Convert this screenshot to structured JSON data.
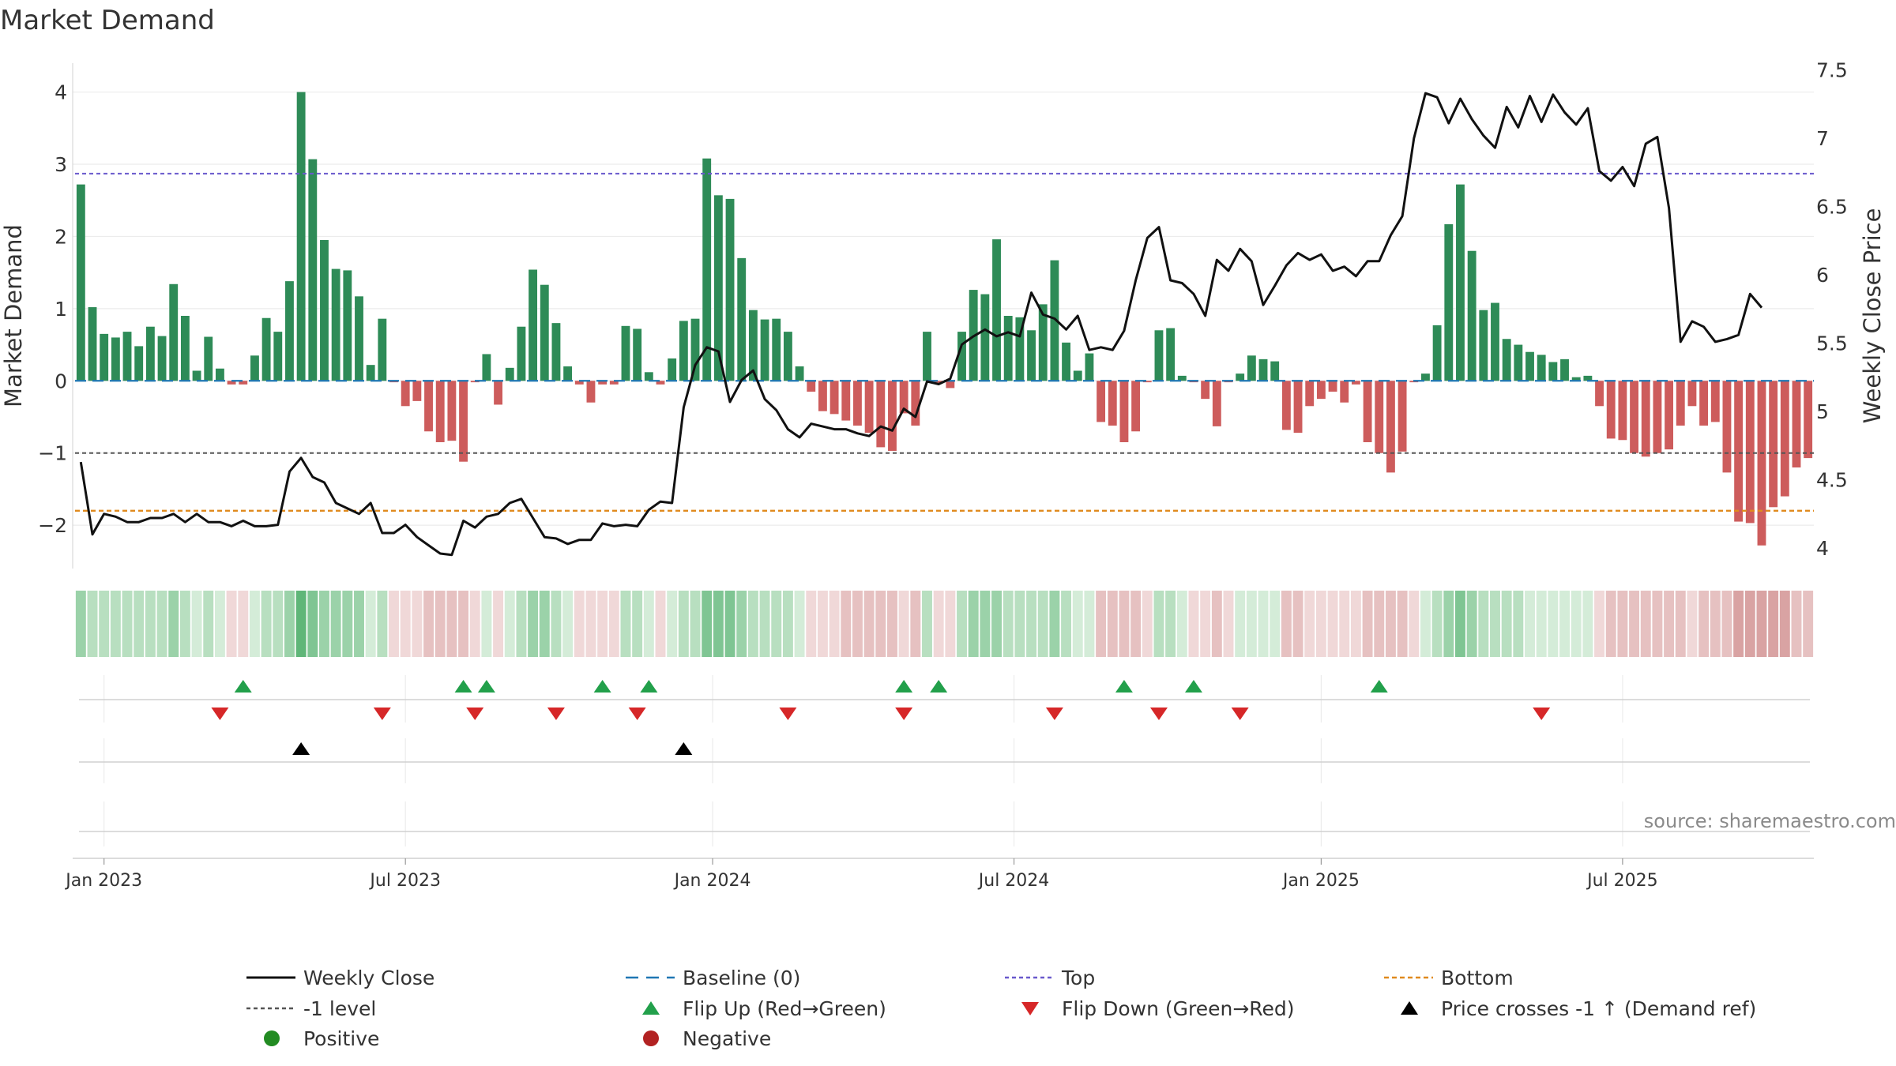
{
  "chart_data": {
    "type": "bar",
    "title": "Market Demand",
    "ylabel_left": "Market Demand",
    "ylabel_right": "Weekly Close Price",
    "ylim_left": [
      -2.6,
      4.4
    ],
    "ylim_right": [
      3.85,
      7.55
    ],
    "left_ticks": [
      {
        "v": 4,
        "t": "4"
      },
      {
        "v": 3,
        "t": "3"
      },
      {
        "v": 2,
        "t": "2"
      },
      {
        "v": 1,
        "t": "1"
      },
      {
        "v": 0,
        "t": "0"
      },
      {
        "v": -1,
        "t": "−1"
      },
      {
        "v": -2,
        "t": "−2"
      }
    ],
    "right_ticks": [
      {
        "v": 7.5,
        "t": "7.5"
      },
      {
        "v": 7,
        "t": "7"
      },
      {
        "v": 6.5,
        "t": "6.5"
      },
      {
        "v": 6,
        "t": "6"
      },
      {
        "v": 5.5,
        "t": "5.5"
      },
      {
        "v": 5,
        "t": "5"
      },
      {
        "v": 4.5,
        "t": "4.5"
      },
      {
        "v": 4,
        "t": "4"
      }
    ],
    "x_ticks": [
      {
        "i": 2,
        "label": "Jan 2023"
      },
      {
        "i": 28,
        "label": "Jul 2023"
      },
      {
        "i": 54.5,
        "label": "Jan 2024"
      },
      {
        "i": 80.5,
        "label": "Jul 2024"
      },
      {
        "i": 107,
        "label": "Jan 2025"
      },
      {
        "i": 133,
        "label": "Jul 2025"
      }
    ],
    "top_level": 2.87,
    "minus1_level": -1,
    "bottom_level": -1.8,
    "demand": [
      2.72,
      1.02,
      0.65,
      0.6,
      0.68,
      0.48,
      0.75,
      0.62,
      1.34,
      0.9,
      0.14,
      0.61,
      0.17,
      -0.05,
      -0.05,
      0.35,
      0.87,
      0.68,
      1.38,
      4.0,
      3.07,
      1.95,
      1.55,
      1.53,
      1.17,
      0.22,
      0.86,
      -0.02,
      -0.35,
      -0.28,
      -0.7,
      -0.85,
      -0.83,
      -1.12,
      -0.02,
      0.37,
      -0.33,
      0.18,
      0.75,
      1.54,
      1.33,
      0.8,
      0.2,
      -0.05,
      -0.3,
      -0.05,
      -0.05,
      0.76,
      0.72,
      0.12,
      -0.05,
      0.31,
      0.83,
      0.86,
      3.08,
      2.57,
      2.52,
      1.7,
      0.98,
      0.85,
      0.86,
      0.68,
      0.2,
      -0.15,
      -0.42,
      -0.46,
      -0.55,
      -0.62,
      -0.72,
      -0.92,
      -0.97,
      -0.45,
      -0.62,
      0.68,
      -0.03,
      -0.1,
      0.68,
      1.26,
      1.2,
      1.96,
      0.9,
      0.88,
      0.7,
      1.06,
      1.67,
      0.53,
      0.14,
      0.38,
      -0.57,
      -0.62,
      -0.85,
      -0.7,
      -0.02,
      0.7,
      0.73,
      0.07,
      -0.02,
      -0.25,
      -0.63,
      -0.02,
      0.1,
      0.35,
      0.3,
      0.27,
      -0.68,
      -0.72,
      -0.35,
      -0.25,
      -0.15,
      -0.3,
      -0.05,
      -0.85,
      -1.0,
      -1.27,
      -0.98,
      -0.02,
      0.1,
      0.77,
      2.17,
      2.72,
      1.8,
      0.98,
      1.08,
      0.58,
      0.5,
      0.4,
      0.36,
      0.26,
      0.3,
      0.05,
      0.07,
      -0.35,
      -0.8,
      -0.82,
      -1.0,
      -1.05,
      -1.0,
      -0.95,
      -0.62,
      -0.35,
      -0.62,
      -0.57,
      -1.27,
      -1.95,
      -1.97,
      -2.28,
      -1.75,
      -1.6,
      -1.2,
      -1.07
    ],
    "weekly_close": [
      4.63,
      4.1,
      4.25,
      4.23,
      4.19,
      4.19,
      4.22,
      4.22,
      4.25,
      4.19,
      4.25,
      4.19,
      4.19,
      4.16,
      4.2,
      4.16,
      4.16,
      4.17,
      4.56,
      4.66,
      4.52,
      4.48,
      4.33,
      4.29,
      4.25,
      4.33,
      4.11,
      4.11,
      4.17,
      4.08,
      4.02,
      3.96,
      3.95,
      4.2,
      4.15,
      4.23,
      4.25,
      4.33,
      4.36,
      4.22,
      4.08,
      4.07,
      4.03,
      4.06,
      4.06,
      4.18,
      4.16,
      4.17,
      4.16,
      4.28,
      4.34,
      4.33,
      5.03,
      5.34,
      5.47,
      5.44,
      5.07,
      5.23,
      5.3,
      5.09,
      5.01,
      4.87,
      4.81,
      4.91,
      4.89,
      4.87,
      4.87,
      4.84,
      4.82,
      4.89,
      4.86,
      5.02,
      4.96,
      5.22,
      5.2,
      5.24,
      5.49,
      5.55,
      5.6,
      5.55,
      5.58,
      5.55,
      5.87,
      5.71,
      5.68,
      5.6,
      5.7,
      5.45,
      5.47,
      5.45,
      5.59,
      5.96,
      6.27,
      6.35,
      5.96,
      5.94,
      5.86,
      5.7,
      6.11,
      6.03,
      6.19,
      6.1,
      5.78,
      5.92,
      6.07,
      6.16,
      6.11,
      6.15,
      6.03,
      6.06,
      5.99,
      6.1,
      6.1,
      6.29,
      6.43,
      7.0,
      7.33,
      7.3,
      7.11,
      7.29,
      7.14,
      7.02,
      6.93,
      7.23,
      7.08,
      7.31,
      7.12,
      7.32,
      7.19,
      7.1,
      7.22,
      6.76,
      6.69,
      6.79,
      6.65,
      6.96,
      7.01,
      6.49,
      5.51,
      5.66,
      5.62,
      5.51,
      5.53,
      5.56,
      5.86,
      5.76
    ],
    "shade_levels": [
      3,
      2,
      2,
      2,
      2,
      2,
      2,
      2,
      3,
      2,
      1,
      2,
      1,
      -1,
      -1,
      1,
      2,
      2,
      3,
      5,
      4,
      3,
      3,
      3,
      3,
      1,
      2,
      -1,
      -1,
      -1,
      -2,
      -2,
      -2,
      -2,
      -1,
      1,
      -1,
      1,
      2,
      3,
      3,
      2,
      1,
      -1,
      -1,
      -1,
      -1,
      2,
      2,
      1,
      -1,
      1,
      2,
      2,
      4,
      4,
      4,
      3,
      2,
      2,
      2,
      2,
      1,
      -1,
      -1,
      -1,
      -2,
      -2,
      -2,
      -2,
      -2,
      -1,
      -2,
      2,
      -1,
      -1,
      2,
      3,
      3,
      3,
      2,
      2,
      2,
      2,
      3,
      2,
      1,
      1,
      -2,
      -2,
      -2,
      -2,
      -1,
      2,
      2,
      1,
      -1,
      -1,
      -2,
      -1,
      1,
      1,
      1,
      1,
      -2,
      -2,
      -1,
      -1,
      -1,
      -1,
      -1,
      -2,
      -2,
      -2,
      -2,
      -1,
      1,
      2,
      3,
      4,
      3,
      2,
      2,
      2,
      2,
      1,
      1,
      1,
      1,
      1,
      1,
      -1,
      -2,
      -2,
      -2,
      -2,
      -2,
      -2,
      -2,
      -1,
      -2,
      -2,
      -2,
      -3,
      -3,
      -3,
      -3,
      -3,
      -2,
      -2
    ],
    "flip_up_weeks": [
      14,
      33,
      35,
      45,
      49,
      71,
      74,
      90,
      96,
      112
    ],
    "flip_down_weeks": [
      12,
      26,
      34,
      41,
      48,
      61,
      71,
      84,
      93,
      100,
      126
    ],
    "price_cross_weeks": [
      19,
      52
    ],
    "annotation": "source: sharemaestro.com",
    "legend": [
      {
        "key": "close",
        "label": "Weekly Close"
      },
      {
        "key": "baseline",
        "label": "Baseline (0)"
      },
      {
        "key": "top",
        "label": "Top"
      },
      {
        "key": "bottom",
        "label": "Bottom"
      },
      {
        "key": "minus1",
        "label": "-1 level"
      },
      {
        "key": "flipup",
        "label": "Flip Up (Red→Green)"
      },
      {
        "key": "flipdown",
        "label": "Flip Down (Green→Red)"
      },
      {
        "key": "cross",
        "label": "Price crosses -1 ↑ (Demand ref)"
      },
      {
        "key": "positive",
        "label": "Positive"
      },
      {
        "key": "negative",
        "label": "Negative"
      }
    ],
    "colors": {
      "positive_bar": "#2e8b57",
      "negative_bar": "#cd5c5c",
      "close_line": "#111111",
      "baseline": "#1f77b4",
      "top": "#6a5acd",
      "bottom": "#e08a1e",
      "minus1": "#555555",
      "flip_up": "#22a04b",
      "flip_down": "#d62728",
      "cross": "#000000",
      "positive_dot": "#228b22",
      "negative_dot": "#b22222"
    }
  }
}
